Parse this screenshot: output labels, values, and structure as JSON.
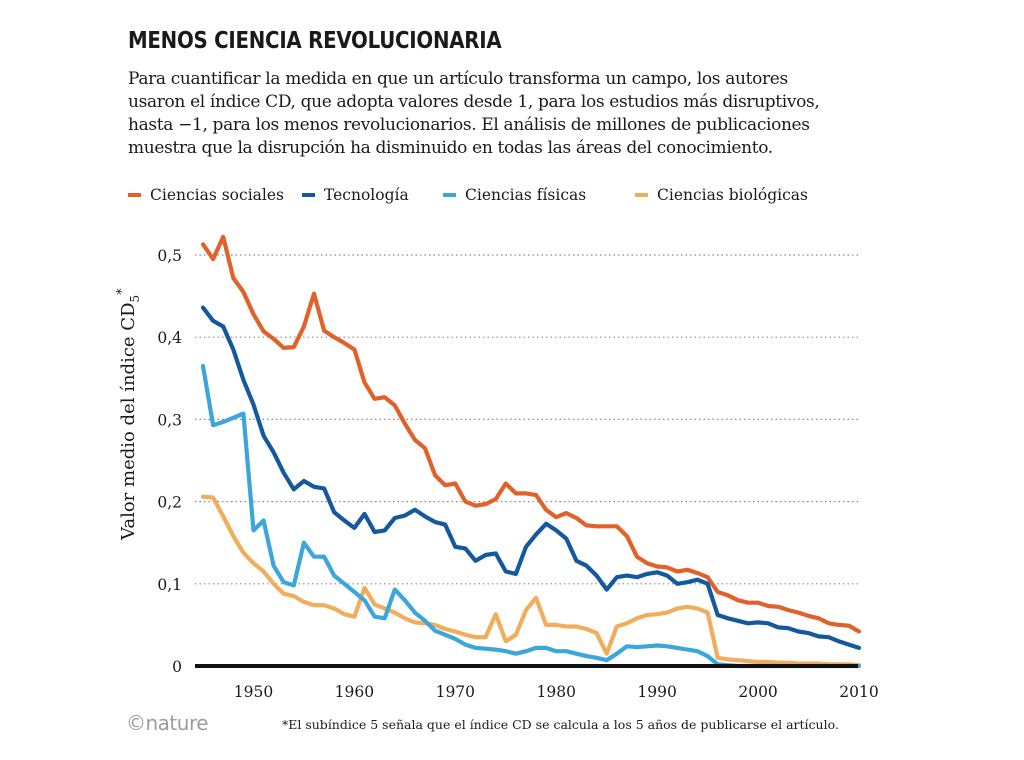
{
  "title": "MENOS CIENCIA REVOLUCIONARIA",
  "subtitle": "Para cuantificar la medida en que un artículo transforma un campo, los autores\nusaron el índice CD, que adopta valores desde 1, para los estudios más disruptivos,\nhasta −1, para los menos revolucionarios. El análisis de millones de publicaciones\nmuestra que la disrupción ha disminuido en todas las áreas del conocimiento.",
  "footnote": "*El subíndice 5 señala que el índice CD se calcula a los 5 años de publicarse el artículo.",
  "brand": "©nature",
  "colors": {
    "ciencias_sociales": "#e0622a",
    "tecnologia": "#14599e",
    "ciencias_fisicas": "#3aa6dc",
    "ciencias_biologicas": "#f2ad5c",
    "gridline": "#8a8a8a",
    "baseline": "#111111"
  },
  "chart_data": {
    "type": "line",
    "title": "MENOS CIENCIA REVOLUCIONARIA",
    "xlabel": "",
    "ylabel": "Valor medio del índice CD",
    "ylabel_subscript": "5",
    "ylabel_superscript": "*",
    "xlim": [
      1943.5,
      2011
    ],
    "ylim": [
      0,
      0.52
    ],
    "grid": true,
    "legend_position": "top",
    "x_ticks": [
      1950,
      1960,
      1970,
      1980,
      1990,
      2000,
      2010
    ],
    "x_tick_labels": [
      "1950",
      "1960",
      "1970",
      "1980",
      "1990",
      "2000",
      "2010"
    ],
    "y_ticks": [
      0,
      0.1,
      0.2,
      0.3,
      0.4,
      0.5
    ],
    "y_tick_labels": [
      "0",
      "0,1",
      "0,2",
      "0,3",
      "0,4",
      "0,5"
    ],
    "series": [
      {
        "name": "Ciencias sociales",
        "color_key": "ciencias_sociales",
        "points": [
          [
            1945,
            0.513
          ],
          [
            1946,
            0.495
          ],
          [
            1947,
            0.522
          ],
          [
            1948,
            0.472
          ],
          [
            1949,
            0.455
          ],
          [
            1950,
            0.428
          ],
          [
            1951,
            0.407
          ],
          [
            1952,
            0.398
          ],
          [
            1953,
            0.387
          ],
          [
            1954,
            0.388
          ],
          [
            1955,
            0.413
          ],
          [
            1956,
            0.453
          ],
          [
            1957,
            0.408
          ],
          [
            1958,
            0.4
          ],
          [
            1959,
            0.393
          ],
          [
            1960,
            0.385
          ],
          [
            1961,
            0.345
          ],
          [
            1962,
            0.325
          ],
          [
            1963,
            0.327
          ],
          [
            1964,
            0.317
          ],
          [
            1965,
            0.295
          ],
          [
            1966,
            0.275
          ],
          [
            1967,
            0.265
          ],
          [
            1968,
            0.232
          ],
          [
            1969,
            0.22
          ],
          [
            1970,
            0.222
          ],
          [
            1971,
            0.2
          ],
          [
            1972,
            0.195
          ],
          [
            1973,
            0.197
          ],
          [
            1974,
            0.203
          ],
          [
            1975,
            0.222
          ],
          [
            1976,
            0.21
          ],
          [
            1977,
            0.21
          ],
          [
            1978,
            0.208
          ],
          [
            1979,
            0.19
          ],
          [
            1980,
            0.181
          ],
          [
            1981,
            0.186
          ],
          [
            1982,
            0.18
          ],
          [
            1983,
            0.171
          ],
          [
            1984,
            0.17
          ],
          [
            1985,
            0.17
          ],
          [
            1986,
            0.17
          ],
          [
            1987,
            0.158
          ],
          [
            1988,
            0.133
          ],
          [
            1989,
            0.125
          ],
          [
            1990,
            0.121
          ],
          [
            1991,
            0.12
          ],
          [
            1992,
            0.115
          ],
          [
            1993,
            0.117
          ],
          [
            1994,
            0.113
          ],
          [
            1995,
            0.108
          ],
          [
            1996,
            0.09
          ],
          [
            1997,
            0.086
          ],
          [
            1998,
            0.08
          ],
          [
            1999,
            0.077
          ],
          [
            2000,
            0.077
          ],
          [
            2001,
            0.073
          ],
          [
            2002,
            0.072
          ],
          [
            2003,
            0.068
          ],
          [
            2004,
            0.065
          ],
          [
            2005,
            0.061
          ],
          [
            2006,
            0.058
          ],
          [
            2007,
            0.052
          ],
          [
            2008,
            0.05
          ],
          [
            2009,
            0.049
          ],
          [
            2010,
            0.042
          ]
        ]
      },
      {
        "name": "Tecnología",
        "color_key": "tecnologia",
        "points": [
          [
            1945,
            0.436
          ],
          [
            1946,
            0.42
          ],
          [
            1947,
            0.413
          ],
          [
            1948,
            0.385
          ],
          [
            1949,
            0.348
          ],
          [
            1950,
            0.318
          ],
          [
            1951,
            0.28
          ],
          [
            1952,
            0.26
          ],
          [
            1953,
            0.235
          ],
          [
            1954,
            0.215
          ],
          [
            1955,
            0.225
          ],
          [
            1956,
            0.218
          ],
          [
            1957,
            0.216
          ],
          [
            1958,
            0.187
          ],
          [
            1959,
            0.177
          ],
          [
            1960,
            0.168
          ],
          [
            1961,
            0.185
          ],
          [
            1962,
            0.163
          ],
          [
            1963,
            0.165
          ],
          [
            1964,
            0.18
          ],
          [
            1965,
            0.183
          ],
          [
            1966,
            0.19
          ],
          [
            1967,
            0.182
          ],
          [
            1968,
            0.175
          ],
          [
            1969,
            0.172
          ],
          [
            1970,
            0.145
          ],
          [
            1971,
            0.143
          ],
          [
            1972,
            0.128
          ],
          [
            1973,
            0.135
          ],
          [
            1974,
            0.137
          ],
          [
            1975,
            0.115
          ],
          [
            1976,
            0.112
          ],
          [
            1977,
            0.145
          ],
          [
            1978,
            0.16
          ],
          [
            1979,
            0.173
          ],
          [
            1980,
            0.165
          ],
          [
            1981,
            0.155
          ],
          [
            1982,
            0.128
          ],
          [
            1983,
            0.122
          ],
          [
            1984,
            0.11
          ],
          [
            1985,
            0.093
          ],
          [
            1986,
            0.108
          ],
          [
            1987,
            0.11
          ],
          [
            1988,
            0.108
          ],
          [
            1989,
            0.112
          ],
          [
            1990,
            0.114
          ],
          [
            1991,
            0.11
          ],
          [
            1992,
            0.1
          ],
          [
            1993,
            0.102
          ],
          [
            1994,
            0.105
          ],
          [
            1995,
            0.1
          ],
          [
            1996,
            0.062
          ],
          [
            1997,
            0.058
          ],
          [
            1998,
            0.055
          ],
          [
            1999,
            0.052
          ],
          [
            2000,
            0.053
          ],
          [
            2001,
            0.052
          ],
          [
            2002,
            0.047
          ],
          [
            2003,
            0.046
          ],
          [
            2004,
            0.042
          ],
          [
            2005,
            0.04
          ],
          [
            2006,
            0.036
          ],
          [
            2007,
            0.035
          ],
          [
            2008,
            0.03
          ],
          [
            2009,
            0.026
          ],
          [
            2010,
            0.022
          ]
        ]
      },
      {
        "name": "Ciencias físicas",
        "color_key": "ciencias_fisicas",
        "points": [
          [
            1945,
            0.365
          ],
          [
            1946,
            0.293
          ],
          [
            1947,
            0.297
          ],
          [
            1948,
            0.302
          ],
          [
            1949,
            0.307
          ],
          [
            1950,
            0.165
          ],
          [
            1951,
            0.177
          ],
          [
            1952,
            0.122
          ],
          [
            1953,
            0.102
          ],
          [
            1954,
            0.098
          ],
          [
            1955,
            0.15
          ],
          [
            1956,
            0.133
          ],
          [
            1957,
            0.133
          ],
          [
            1958,
            0.11
          ],
          [
            1959,
            0.1
          ],
          [
            1960,
            0.09
          ],
          [
            1961,
            0.08
          ],
          [
            1962,
            0.06
          ],
          [
            1963,
            0.058
          ],
          [
            1964,
            0.093
          ],
          [
            1965,
            0.08
          ],
          [
            1966,
            0.065
          ],
          [
            1967,
            0.055
          ],
          [
            1968,
            0.043
          ],
          [
            1969,
            0.038
          ],
          [
            1970,
            0.033
          ],
          [
            1971,
            0.026
          ],
          [
            1972,
            0.022
          ],
          [
            1973,
            0.021
          ],
          [
            1974,
            0.02
          ],
          [
            1975,
            0.018
          ],
          [
            1976,
            0.015
          ],
          [
            1977,
            0.018
          ],
          [
            1978,
            0.022
          ],
          [
            1979,
            0.022
          ],
          [
            1980,
            0.018
          ],
          [
            1981,
            0.018
          ],
          [
            1982,
            0.015
          ],
          [
            1983,
            0.012
          ],
          [
            1984,
            0.01
          ],
          [
            1985,
            0.007
          ],
          [
            1986,
            0.015
          ],
          [
            1987,
            0.024
          ],
          [
            1988,
            0.023
          ],
          [
            1989,
            0.024
          ],
          [
            1990,
            0.025
          ],
          [
            1991,
            0.024
          ],
          [
            1992,
            0.022
          ],
          [
            1993,
            0.02
          ],
          [
            1994,
            0.018
          ],
          [
            1995,
            0.012
          ],
          [
            1996,
            0.002
          ],
          [
            1997,
            0.001
          ],
          [
            1998,
            0.0
          ],
          [
            1999,
            0.0
          ],
          [
            2000,
            0.0
          ],
          [
            2001,
            0.0
          ],
          [
            2002,
            0.0
          ],
          [
            2003,
            0.0
          ],
          [
            2004,
            0.0
          ],
          [
            2005,
            0.0
          ],
          [
            2006,
            0.0
          ],
          [
            2007,
            0.0
          ],
          [
            2008,
            0.0
          ],
          [
            2009,
            0.0
          ],
          [
            2010,
            0.0
          ]
        ]
      },
      {
        "name": "Ciencias biológicas",
        "color_key": "ciencias_biologicas",
        "points": [
          [
            1945,
            0.206
          ],
          [
            1946,
            0.205
          ],
          [
            1947,
            0.182
          ],
          [
            1948,
            0.158
          ],
          [
            1949,
            0.138
          ],
          [
            1950,
            0.125
          ],
          [
            1951,
            0.115
          ],
          [
            1952,
            0.1
          ],
          [
            1953,
            0.088
          ],
          [
            1954,
            0.085
          ],
          [
            1955,
            0.078
          ],
          [
            1956,
            0.074
          ],
          [
            1957,
            0.074
          ],
          [
            1958,
            0.07
          ],
          [
            1959,
            0.063
          ],
          [
            1960,
            0.06
          ],
          [
            1961,
            0.095
          ],
          [
            1962,
            0.075
          ],
          [
            1963,
            0.07
          ],
          [
            1964,
            0.065
          ],
          [
            1965,
            0.058
          ],
          [
            1966,
            0.053
          ],
          [
            1967,
            0.052
          ],
          [
            1968,
            0.05
          ],
          [
            1969,
            0.045
          ],
          [
            1970,
            0.042
          ],
          [
            1971,
            0.038
          ],
          [
            1972,
            0.035
          ],
          [
            1973,
            0.035
          ],
          [
            1974,
            0.063
          ],
          [
            1975,
            0.03
          ],
          [
            1976,
            0.038
          ],
          [
            1977,
            0.068
          ],
          [
            1978,
            0.083
          ],
          [
            1979,
            0.05
          ],
          [
            1980,
            0.05
          ],
          [
            1981,
            0.048
          ],
          [
            1982,
            0.048
          ],
          [
            1983,
            0.045
          ],
          [
            1984,
            0.04
          ],
          [
            1985,
            0.015
          ],
          [
            1986,
            0.048
          ],
          [
            1987,
            0.052
          ],
          [
            1988,
            0.058
          ],
          [
            1989,
            0.062
          ],
          [
            1990,
            0.063
          ],
          [
            1991,
            0.065
          ],
          [
            1992,
            0.07
          ],
          [
            1993,
            0.072
          ],
          [
            1994,
            0.07
          ],
          [
            1995,
            0.065
          ],
          [
            1996,
            0.01
          ],
          [
            1997,
            0.008
          ],
          [
            1998,
            0.007
          ],
          [
            1999,
            0.006
          ],
          [
            2000,
            0.005
          ],
          [
            2001,
            0.005
          ],
          [
            2002,
            0.004
          ],
          [
            2003,
            0.004
          ],
          [
            2004,
            0.003
          ],
          [
            2005,
            0.003
          ],
          [
            2006,
            0.003
          ],
          [
            2007,
            0.002
          ],
          [
            2008,
            0.002
          ],
          [
            2009,
            0.002
          ],
          [
            2010,
            0.001
          ]
        ]
      }
    ]
  }
}
